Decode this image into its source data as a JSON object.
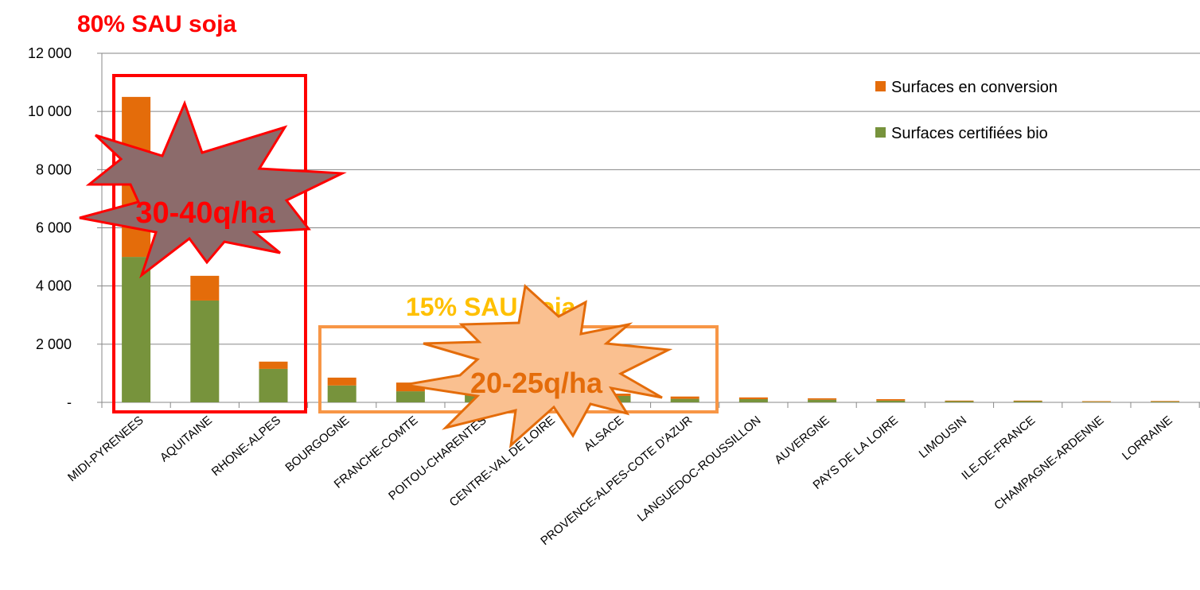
{
  "chart_data": {
    "type": "bar",
    "stacked": true,
    "categories": [
      "MIDI-PYRENEES",
      "AQUITAINE",
      "RHONE-ALPES",
      "BOURGOGNE",
      "FRANCHE-COMTE",
      "POITOU-CHARENTES",
      "CENTRE-VAL DE LOIRE",
      "ALSACE",
      "PROVENCE-ALPES-COTE D'AZUR",
      "LANGUEDOC-ROUSSILLON",
      "AUVERGNE",
      "PAYS DE LA LOIRE",
      "LIMOUSIN",
      "ILE-DE-FRANCE",
      "CHAMPAGNE-ARDENNE",
      "LORRAINE"
    ],
    "series": [
      {
        "name": "Surfaces certifiées bio",
        "color": "#77933c",
        "values": [
          5000,
          3500,
          1150,
          580,
          380,
          300,
          250,
          220,
          120,
          110,
          90,
          60,
          40,
          40,
          20,
          25
        ]
      },
      {
        "name": "Surfaces en conversion",
        "color": "#e46c0a",
        "values": [
          5500,
          850,
          250,
          270,
          300,
          350,
          230,
          80,
          80,
          60,
          50,
          50,
          20,
          20,
          20,
          20
        ]
      }
    ],
    "yticks": [
      0,
      2000,
      4000,
      6000,
      8000,
      10000,
      12000
    ],
    "ytick_labels": [
      "-",
      "2 000",
      "4 000",
      "6 000",
      "8 000",
      "10 000",
      "12 000"
    ],
    "ylim": [
      0,
      12000
    ],
    "grid": true,
    "legend": "top-right",
    "legend_order": [
      "Surfaces en conversion",
      "Surfaces certifiées bio"
    ]
  },
  "annotations": {
    "group1_title": "80% SAU soja",
    "group1_color": "#ff0000",
    "group1_burst_label": "30-40q/ha",
    "group1_burst_fill": "#8c6b6b",
    "group2_title": "15% SAU soja",
    "group2_title_color": "#ffc000",
    "group2_box_color": "#f79646",
    "group2_burst_label": "20-25q/ha",
    "group2_burst_fill": "#fac090",
    "group2_burst_text_color": "#e46c0a"
  }
}
